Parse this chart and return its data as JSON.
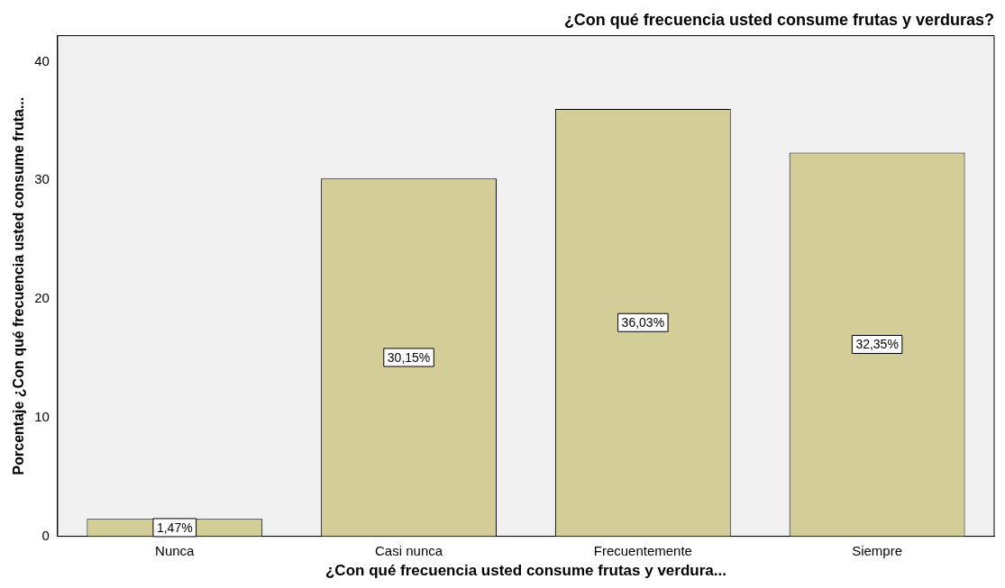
{
  "chart_data": {
    "type": "bar",
    "title": "¿Con qué frecuencia usted consume frutas y verduras?",
    "xlabel": "¿Con qué frecuencia usted consume frutas y verdura...",
    "ylabel": "Porcentaje ¿Con qué frecuencia usted consume fruta...",
    "categories": [
      "Nunca",
      "Casi nunca",
      "Frecuentemente",
      "Siempre"
    ],
    "values": [
      1.47,
      30.15,
      36.03,
      32.35
    ],
    "value_labels": [
      "1,47%",
      "30,15%",
      "36,03%",
      "32,35%"
    ],
    "color": "#d3ce97",
    "ylim": [
      0,
      42.2
    ],
    "yticks": [
      0,
      10,
      20,
      30,
      40
    ],
    "grid": false,
    "legend": false
  }
}
